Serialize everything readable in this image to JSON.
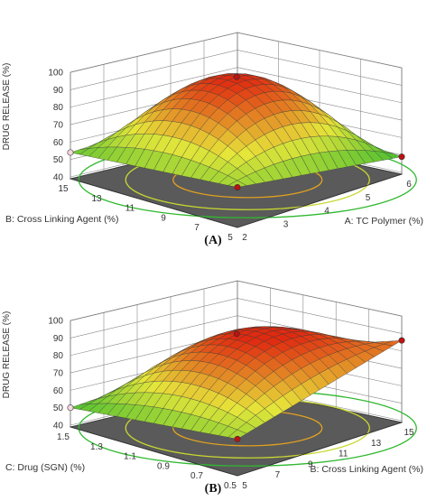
{
  "chart_data": [
    {
      "type": "surface3d",
      "panel_label": "(A)",
      "zlabel": "DRUG RELEASE (%)",
      "xlabel": "A: TC Polymer (%)",
      "ylabel": "B: Cross Linking Agent (%)",
      "zticks": [
        "40",
        "50",
        "60",
        "70",
        "80",
        "90",
        "100"
      ],
      "xticks": [
        "2",
        "3",
        "4",
        "5",
        "6"
      ],
      "yticks": [
        "5",
        "7",
        "9",
        "11",
        "13",
        "15"
      ],
      "zlim": [
        40,
        100
      ],
      "xlim": [
        2,
        6
      ],
      "ylim": [
        5,
        15
      ],
      "surface_peak": 98,
      "corner_values": {
        "x_high_y_low": 49,
        "x_low_y_high": 54,
        "x_high_y_high": 62,
        "x_low_y_low": 62
      },
      "colors": {
        "low": "#2fb82f",
        "mid": "#e6e63a",
        "high": "#e02a10",
        "floor": "#5a5a5a"
      }
    },
    {
      "type": "surface3d",
      "panel_label": "(B)",
      "zlabel": "DRUG RELEASE (%)",
      "xlabel": "B: Cross Linking Agent (%)",
      "ylabel": "C: Drug (SGN) (%)",
      "zticks": [
        "40",
        "50",
        "60",
        "70",
        "80",
        "90",
        "100"
      ],
      "xticks": [
        "5",
        "7",
        "9",
        "11",
        "13",
        "15"
      ],
      "yticks": [
        "0.5",
        "0.7",
        "0.9",
        "1.1",
        "1.3",
        "1.5"
      ],
      "zlim": [
        40,
        100
      ],
      "xlim": [
        5,
        15
      ],
      "ylim": [
        0.5,
        1.5
      ],
      "surface_peak": 93,
      "corner_values": {
        "x_high_y_low": 86,
        "x_low_y_high": 50,
        "x_high_y_high": 60,
        "x_low_y_low": 60
      },
      "colors": {
        "low": "#2fb82f",
        "mid": "#e6e63a",
        "high": "#e02a10",
        "floor": "#5a5a5a"
      }
    }
  ]
}
